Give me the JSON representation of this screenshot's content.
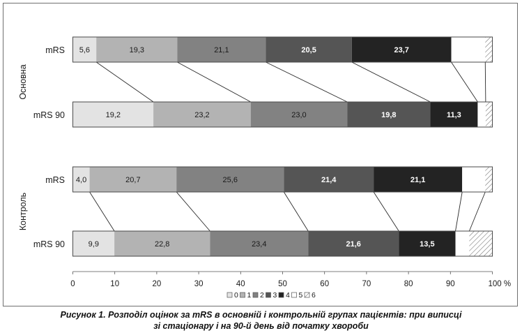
{
  "caption": {
    "line1": "Рисунок 1. Розподіл оцінок за mRS в основній і контрольній групах пацієнтів: при виписці",
    "line2": "зі стаціонару і на 90-й день від початку хвороби"
  },
  "chart_data": {
    "type": "bar",
    "orientation": "horizontal",
    "stacked": true,
    "percent": true,
    "xlim": [
      0,
      100
    ],
    "x_ticks": [
      "0",
      "10",
      "20",
      "30",
      "40",
      "50",
      "60",
      "70",
      "80",
      "90",
      "100 %"
    ],
    "legend": {
      "placement": "bottom",
      "entries": [
        "0",
        "1",
        "2",
        "3",
        "4",
        "5",
        "6"
      ]
    },
    "group_labels": [
      "Основна",
      "Контроль"
    ],
    "series": [
      {
        "name": "0",
        "color": "#e3e3e3",
        "hatch": false,
        "values": [
          5.6,
          19.2,
          4.0,
          9.9
        ]
      },
      {
        "name": "1",
        "color": "#b3b3b3",
        "hatch": false,
        "values": [
          19.3,
          23.2,
          20.7,
          22.8
        ]
      },
      {
        "name": "2",
        "color": "#828282",
        "hatch": false,
        "values": [
          21.1,
          23.0,
          25.6,
          23.4
        ]
      },
      {
        "name": "3",
        "color": "#555555",
        "hatch": false,
        "values": [
          20.5,
          19.8,
          21.4,
          21.6
        ]
      },
      {
        "name": "4",
        "color": "#232323",
        "hatch": false,
        "values": [
          23.7,
          11.3,
          21.1,
          13.5
        ]
      },
      {
        "name": "5",
        "color": "#ffffff",
        "hatch": false,
        "values": [
          8.1,
          1.9,
          5.5,
          3.3
        ]
      },
      {
        "name": "6",
        "color": "#ffffff",
        "hatch": true,
        "values": [
          1.7,
          1.6,
          1.7,
          5.5
        ]
      }
    ],
    "bars": [
      {
        "group": "Основна",
        "label": "mRS",
        "value_labels": [
          "5,6",
          "19,3",
          "21,1",
          "20,5",
          "23,7",
          "",
          ""
        ]
      },
      {
        "group": "Основна",
        "label": "mRS 90",
        "value_labels": [
          "19,2",
          "23,2",
          "23,0",
          "19,8",
          "11,3",
          "",
          ""
        ]
      },
      {
        "group": "Контроль",
        "label": "mRS",
        "value_labels": [
          "4,0",
          "20,7",
          "25,6",
          "21,4",
          "21,1",
          "",
          ""
        ]
      },
      {
        "group": "Контроль",
        "label": "mRS 90",
        "value_labels": [
          "9,9",
          "22,8",
          "23,4",
          "21,6",
          "13,5",
          "",
          ""
        ]
      }
    ],
    "connector_lines": true
  }
}
